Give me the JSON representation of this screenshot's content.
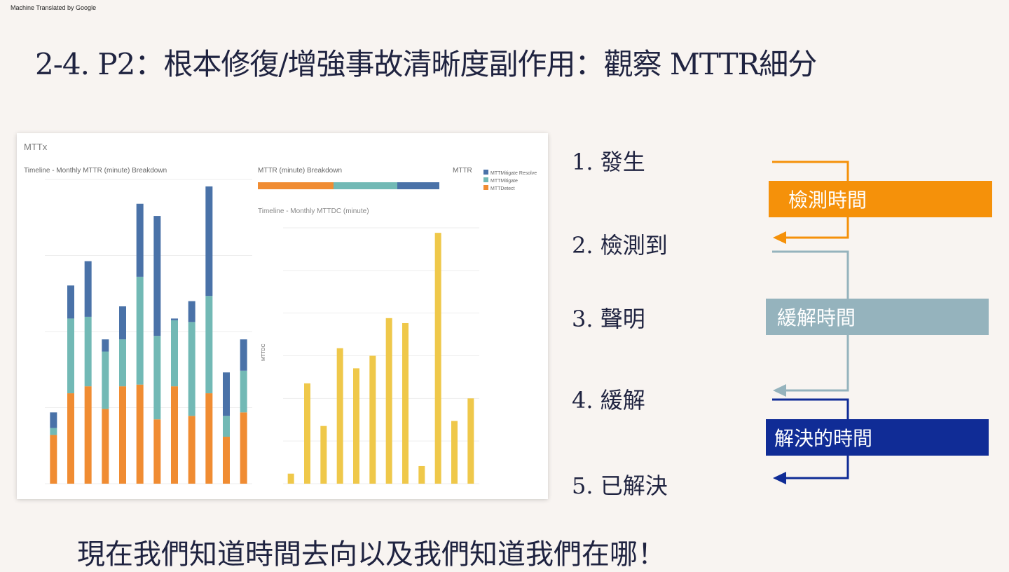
{
  "watermark": "Machine Translated by Google",
  "title": "2-4. P2：根本修復/增強事故清晰度副作用：觀察 MTTR細分",
  "dashboard": {
    "title": "MTTx",
    "left_chart_title": "Timeline - Monthly MTTR (minute) Breakdown",
    "mttr_breakdown_title": "MTTR (minute) Breakdown",
    "legend_header": "MTTR",
    "legend_items": [
      "MTTMitigate Resolve",
      "MTTMitigate",
      "MTTDetect"
    ],
    "right_chart_title": "Timeline - Monthly MTTDC (minute)",
    "right_ylabel": "MTTDC",
    "colors": {
      "detect": "#f08c32",
      "mitigate": "#72b9b5",
      "resolve": "#4a72a8",
      "mttdc": "#efc84a"
    },
    "stacked_bars": [
      {
        "detect": 2.8,
        "mitigate": 0.4,
        "resolve": 0.9
      },
      {
        "detect": 5.2,
        "mitigate": 4.3,
        "resolve": 1.9
      },
      {
        "detect": 5.6,
        "mitigate": 4.0,
        "resolve": 3.2
      },
      {
        "detect": 4.3,
        "mitigate": 3.3,
        "resolve": 0.7
      },
      {
        "detect": 5.6,
        "mitigate": 2.7,
        "resolve": 1.9
      },
      {
        "detect": 5.7,
        "mitigate": 6.2,
        "resolve": 4.2
      },
      {
        "detect": 3.7,
        "mitigate": 4.8,
        "resolve": 6.9
      },
      {
        "detect": 5.6,
        "mitigate": 3.8,
        "resolve": 0.1
      },
      {
        "detect": 3.9,
        "mitigate": 5.4,
        "resolve": 1.2
      },
      {
        "detect": 5.2,
        "mitigate": 5.6,
        "resolve": 6.3
      },
      {
        "detect": 2.7,
        "mitigate": 1.2,
        "resolve": 2.5
      },
      {
        "detect": 4.1,
        "mitigate": 2.4,
        "resolve": 1.8
      }
    ],
    "mttdc_values": [
      0.4,
      4.0,
      2.3,
      5.4,
      4.6,
      5.1,
      6.6,
      6.4,
      0.7,
      10.0,
      2.5,
      3.4
    ]
  },
  "steps": [
    "1. 發生",
    "2. 檢測到",
    "3. 聲明",
    "4. 緩解",
    "5. 已解決"
  ],
  "intervals": {
    "detect": {
      "label": "檢測時間",
      "color": "#f5910a"
    },
    "mitigate": {
      "label": "緩解時間",
      "color": "#95b3bd"
    },
    "resolve": {
      "label": "解決的時間",
      "color": "#102c96"
    }
  },
  "footer": "現在我們知道時間去向以及我們知道我們在哪！"
}
